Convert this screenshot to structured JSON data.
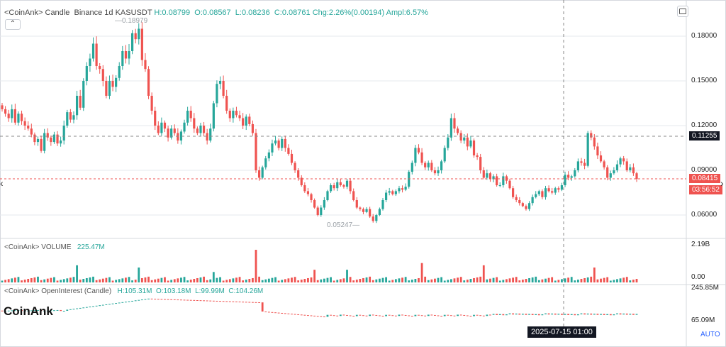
{
  "colors": {
    "up": "#26a69a",
    "down": "#ef5350",
    "grid": "#e6e8ee",
    "separator": "#d5d8de",
    "price_line": "#ef5350",
    "crosshair": "#888888",
    "text": "#333333"
  },
  "header": {
    "source": "<CoinAnk>",
    "type": "Candle",
    "market": "Binance 1d KASUSDT",
    "high": "H:0.08799",
    "open": "O:0.08567",
    "low": "L:0.08236",
    "close": "C:0.08761",
    "change": "Chg:2.26%(0.00194)",
    "ampl": "Ampl:6.57%",
    "collapse_icon": "chevron-up-icon",
    "screenshot_icon": "screenshot-icon"
  },
  "price_axis": {
    "ticks": [
      "0.18000",
      "0.15000",
      "0.12000",
      "0.09000",
      "0.06000"
    ]
  },
  "markers": {
    "high": "0.18979",
    "low": "0.05247"
  },
  "crosshair": {
    "value": "0.11255",
    "date": "2025-07-15 01:00"
  },
  "last_price": {
    "value": "0.08415",
    "countdown": "03:56:52"
  },
  "volume": {
    "title": "<CoinAnk> VOLUME",
    "value": "225.47M",
    "max": "2.19B",
    "min": "0.00"
  },
  "oi": {
    "title": "<CoinAnk> OpenInterest (Candle)",
    "high": "H:105.31M",
    "open": "O:103.18M",
    "low": "L:99.99M",
    "close": "C:104.26M",
    "max": "245.85M",
    "min": "65.09M"
  },
  "watermark": "CoinAnk",
  "auto_label": "AUTO",
  "nav": {
    "left_icon": "chevron-left-icon",
    "right_icon": "chevron-right-icon"
  },
  "chart_data": [
    {
      "type": "candlestick",
      "title": "Binance 1d KASUSDT",
      "ylim": [
        0.05,
        0.195
      ],
      "y_ticks": [
        0.06,
        0.09,
        0.12,
        0.15,
        0.18
      ],
      "closes": [
        0.131,
        0.128,
        0.125,
        0.131,
        0.122,
        0.128,
        0.123,
        0.12,
        0.118,
        0.114,
        0.109,
        0.111,
        0.103,
        0.115,
        0.112,
        0.109,
        0.114,
        0.108,
        0.11,
        0.12,
        0.129,
        0.124,
        0.127,
        0.14,
        0.132,
        0.15,
        0.16,
        0.165,
        0.175,
        0.16,
        0.158,
        0.15,
        0.14,
        0.15,
        0.146,
        0.152,
        0.16,
        0.17,
        0.165,
        0.17,
        0.182,
        0.178,
        0.185,
        0.164,
        0.158,
        0.14,
        0.13,
        0.12,
        0.115,
        0.122,
        0.118,
        0.112,
        0.118,
        0.115,
        0.11,
        0.116,
        0.122,
        0.13,
        0.125,
        0.118,
        0.115,
        0.12,
        0.115,
        0.11,
        0.118,
        0.135,
        0.148,
        0.15,
        0.14,
        0.13,
        0.125,
        0.13,
        0.127,
        0.125,
        0.12,
        0.126,
        0.121,
        0.115,
        0.09,
        0.085,
        0.092,
        0.098,
        0.102,
        0.108,
        0.11,
        0.105,
        0.111,
        0.105,
        0.101,
        0.095,
        0.09,
        0.085,
        0.08,
        0.076,
        0.074,
        0.07,
        0.065,
        0.06,
        0.065,
        0.07,
        0.076,
        0.08,
        0.078,
        0.082,
        0.08,
        0.079,
        0.083,
        0.076,
        0.07,
        0.065,
        0.064,
        0.062,
        0.064,
        0.059,
        0.056,
        0.06,
        0.064,
        0.07,
        0.075,
        0.076,
        0.074,
        0.076,
        0.078,
        0.077,
        0.079,
        0.089,
        0.095,
        0.105,
        0.102,
        0.095,
        0.092,
        0.095,
        0.09,
        0.088,
        0.09,
        0.096,
        0.105,
        0.112,
        0.125,
        0.118,
        0.115,
        0.11,
        0.112,
        0.106,
        0.11,
        0.1,
        0.099,
        0.09,
        0.085,
        0.088,
        0.084,
        0.086,
        0.08,
        0.08,
        0.086,
        0.083,
        0.078,
        0.072,
        0.07,
        0.068,
        0.066,
        0.064,
        0.068,
        0.072,
        0.074,
        0.076,
        0.072,
        0.078,
        0.076,
        0.075,
        0.078,
        0.077,
        0.08,
        0.087,
        0.085,
        0.086,
        0.09,
        0.096,
        0.095,
        0.093,
        0.115,
        0.112,
        0.106,
        0.1,
        0.096,
        0.092,
        0.085,
        0.088,
        0.09,
        0.094,
        0.098,
        0.096,
        0.09,
        0.092,
        0.088,
        0.0842
      ],
      "high": 0.18979,
      "low": 0.05247
    },
    {
      "type": "bar",
      "title": "VOLUME",
      "ylim": [
        0,
        2.19
      ],
      "unit": "B",
      "last": 0.22547
    },
    {
      "type": "candlestick",
      "title": "OpenInterest (Candle)",
      "ylim": [
        65.09,
        245.85
      ],
      "unit": "M",
      "open": 103.18,
      "high": 105.31,
      "low": 99.99,
      "close": 104.26
    }
  ]
}
